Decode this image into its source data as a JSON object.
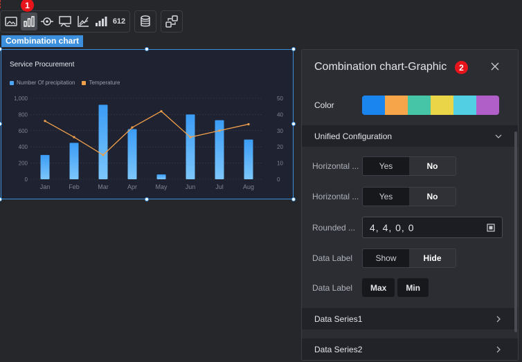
{
  "toolbar": {
    "group1": [
      {
        "icon": "image-chart-icon"
      },
      {
        "icon": "bar-chart-icon",
        "active": true
      },
      {
        "icon": "target-icon"
      },
      {
        "icon": "monitor-icon"
      },
      {
        "icon": "axis-line-icon"
      },
      {
        "icon": "stacked-bar-icon"
      },
      {
        "icon": "number-612-icon",
        "text": "612"
      }
    ],
    "badge1": "1"
  },
  "component_label": "Combination chart",
  "chart_data": {
    "type": "bar",
    "title": "Service Procurement",
    "categories": [
      "Jan",
      "Feb",
      "Mar",
      "Apr",
      "May",
      "Jun",
      "Jul",
      "Aug"
    ],
    "series": [
      {
        "name": "Number Of precipitation",
        "type": "bar",
        "axis": "left",
        "color": "#4da6f7",
        "values": [
          300,
          450,
          920,
          620,
          60,
          800,
          730,
          490
        ]
      },
      {
        "name": "Temperature",
        "type": "line",
        "axis": "right",
        "color": "#f0a04b",
        "values": [
          36,
          26,
          15,
          32,
          42,
          26,
          30,
          34
        ]
      }
    ],
    "ylim_left": [
      0,
      1000
    ],
    "ylim_right": [
      0,
      50
    ],
    "yticks_left": [
      "0",
      "200",
      "400",
      "600",
      "800",
      "1,000"
    ],
    "yticks_right": [
      "0",
      "10",
      "20",
      "30",
      "40",
      "50"
    ],
    "legend_position": "top-left",
    "grid": true
  },
  "panel": {
    "title": "Combination chart-Graphic",
    "badge": "2",
    "color_label": "Color",
    "palette": [
      "#1a85ee",
      "#f6a54a",
      "#46c6a6",
      "#ead448",
      "#52cfe2",
      "#b05fc8"
    ],
    "unified_label": "Unified Configuration",
    "rows": [
      {
        "label": "Horizontal ...",
        "options": [
          "Yes",
          "No"
        ],
        "selected": "No"
      },
      {
        "label": "Horizontal ...",
        "options": [
          "Yes",
          "No"
        ],
        "selected": "No"
      },
      {
        "label": "Rounded ...",
        "value": "4,  4,  0,  0"
      },
      {
        "label": "Data Label",
        "options": [
          "Show",
          "Hide"
        ],
        "selected": "Hide"
      },
      {
        "label": "Data Label",
        "buttons": [
          "Max",
          "Min"
        ]
      }
    ],
    "series_sections": [
      "Data Series1",
      "Data Series2"
    ]
  }
}
